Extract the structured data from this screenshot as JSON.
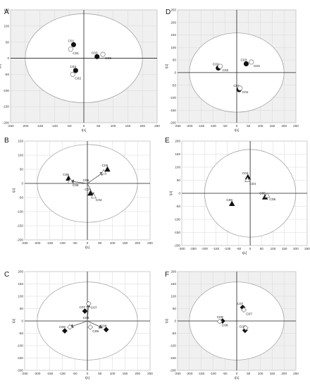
{
  "chart_data": [
    {
      "id": "A",
      "panel_letter": "A",
      "type": "scatter",
      "xlabel": "t[1]",
      "ylabel": "t[2]",
      "xlim": [
        -250,
        250
      ],
      "ylim": [
        -200,
        150
      ],
      "xticks": [
        -250,
        -200,
        -150,
        -100,
        -50,
        0,
        50,
        100,
        150,
        200,
        250
      ],
      "yticks": [
        -200,
        -150,
        -100,
        -50,
        0,
        50,
        100,
        150
      ],
      "ellipse": {
        "rx": 200,
        "ry": 138
      },
      "grid": true,
      "grid_background": "#f0f0f0",
      "points": [
        {
          "x": -35,
          "y": 42,
          "marker": "circle",
          "filled": true,
          "label": "C01"
        },
        {
          "x": -45,
          "y": 28,
          "marker": "circle",
          "filled": false,
          "label": "C01"
        },
        {
          "x": 45,
          "y": 5,
          "marker": "circle",
          "filled": true,
          "label": "C03"
        },
        {
          "x": 65,
          "y": 12,
          "marker": "circle",
          "filled": false,
          "label": "C03"
        },
        {
          "x": -28,
          "y": -38,
          "marker": "circle",
          "filled": true,
          "label": "C02"
        },
        {
          "x": -38,
          "y": -50,
          "marker": "circle",
          "filled": false,
          "label": "C02"
        }
      ],
      "arrows": []
    },
    {
      "id": "D",
      "panel_letter": "D",
      "type": "scatter",
      "xlabel": "t[1]",
      "ylabel": "t[2]",
      "xlim": [
        -250,
        250
      ],
      "ylim": [
        -200,
        250
      ],
      "xticks": [
        -250,
        -200,
        -150,
        -100,
        -50,
        0,
        50,
        100,
        150,
        200,
        250
      ],
      "yticks": [
        -200,
        -150,
        -100,
        -50,
        0,
        50,
        100,
        150,
        200,
        250
      ],
      "ellipse": {
        "rx": 200,
        "ry": 158
      },
      "grid": true,
      "grid_background": "#f0f0f0",
      "points": [
        {
          "x": -78,
          "y": 18,
          "marker": "circle",
          "filled": true,
          "label": "C02"
        },
        {
          "x": -70,
          "y": 25,
          "marker": "circle",
          "filled": false,
          "label": "C02"
        },
        {
          "x": 40,
          "y": 35,
          "marker": "circle",
          "filled": true,
          "label": "C03"
        },
        {
          "x": 62,
          "y": 42,
          "marker": "circle",
          "filled": false,
          "label": "C03"
        },
        {
          "x": 10,
          "y": -68,
          "marker": "circle",
          "filled": true,
          "label": "C01"
        },
        {
          "x": 14,
          "y": -62,
          "marker": "circle",
          "filled": false,
          "label": "C01"
        }
      ],
      "arrows": []
    },
    {
      "id": "B",
      "panel_letter": "B",
      "type": "scatter",
      "xlabel": "t[1]",
      "ylabel": "t[2]",
      "xlim": [
        -250,
        250
      ],
      "ylim": [
        -200,
        150
      ],
      "xticks": [
        -250,
        -200,
        -150,
        -100,
        -50,
        0,
        50,
        100,
        150,
        200,
        250
      ],
      "yticks": [
        -200,
        -150,
        -100,
        -50,
        0,
        50,
        100,
        150
      ],
      "ellipse": {
        "rx": 200,
        "ry": 138
      },
      "grid": true,
      "grid_background": "#ffffff",
      "points": [
        {
          "x": 80,
          "y": 50,
          "marker": "triangle",
          "filled": true,
          "label": "C05"
        },
        {
          "x": 65,
          "y": 40,
          "marker": "triangle",
          "filled": false,
          "label": ""
        },
        {
          "x": -75,
          "y": 18,
          "marker": "triangle",
          "filled": true,
          "label": "C06"
        },
        {
          "x": -68,
          "y": 8,
          "marker": "triangle",
          "filled": false,
          "label": "C06"
        },
        {
          "x": 12,
          "y": -35,
          "marker": "triangle",
          "filled": true,
          "label": "C04"
        },
        {
          "x": 25,
          "y": -45,
          "marker": "triangle",
          "filled": false,
          "label": "C04"
        }
      ],
      "center_label": "C05",
      "arrows": [
        {
          "from": [
            0,
            0
          ],
          "to": [
            65,
            40
          ]
        },
        {
          "from": [
            0,
            0
          ],
          "to": [
            -68,
            8
          ]
        },
        {
          "from": [
            0,
            0
          ],
          "to": [
            25,
            -45
          ]
        }
      ]
    },
    {
      "id": "E",
      "panel_letter": "E",
      "type": "scatter",
      "xlabel": "t[1]",
      "ylabel": "t[2]",
      "xlim": [
        -300,
        250
      ],
      "ylim": [
        -200,
        200
      ],
      "xticks": [
        -300,
        -250,
        -200,
        -150,
        -100,
        -50,
        0,
        50,
        100,
        150,
        200,
        250
      ],
      "yticks": [
        -200,
        -150,
        -100,
        -50,
        0,
        50,
        100,
        150,
        200
      ],
      "ellipse": {
        "rx": 200,
        "ry": 168
      },
      "grid": true,
      "grid_background": "#ffffff",
      "points": [
        {
          "x": -10,
          "y": 62,
          "marker": "triangle",
          "filled": true,
          "label": "C04"
        },
        {
          "x": -12,
          "y": 52,
          "marker": "triangle",
          "filled": false,
          "label": "C04"
        },
        {
          "x": -80,
          "y": -40,
          "marker": "triangle",
          "filled": true,
          "label": "C06"
        },
        {
          "x": 65,
          "y": -15,
          "marker": "triangle",
          "filled": true,
          "label": "C05"
        },
        {
          "x": 75,
          "y": -8,
          "marker": "triangle",
          "filled": false,
          "label": "C05"
        }
      ],
      "arrows": []
    },
    {
      "id": "C",
      "panel_letter": "C",
      "type": "scatter",
      "xlabel": "t[1]",
      "ylabel": "t[2]",
      "xlim": [
        -250,
        250
      ],
      "ylim": [
        -200,
        200
      ],
      "xticks": [
        -250,
        -200,
        -150,
        -100,
        -50,
        0,
        50,
        100,
        150,
        200,
        250
      ],
      "yticks": [
        -200,
        -150,
        -100,
        -50,
        0,
        50,
        100,
        150,
        200
      ],
      "ellipse": {
        "rx": 200,
        "ry": 158
      },
      "grid": true,
      "grid_background": "#ffffff",
      "points": [
        {
          "x": 5,
          "y": 70,
          "marker": "diamond",
          "filled": false,
          "label": "C07"
        },
        {
          "x": -10,
          "y": 40,
          "marker": "diamond",
          "filled": true,
          "label": "C07"
        },
        {
          "x": -90,
          "y": -40,
          "marker": "diamond",
          "filled": true,
          "label": "C09"
        },
        {
          "x": -70,
          "y": -25,
          "marker": "diamond",
          "filled": false,
          "label": ""
        },
        {
          "x": 75,
          "y": -35,
          "marker": "diamond",
          "filled": true,
          "label": "C08"
        },
        {
          "x": 12,
          "y": -25,
          "marker": "diamond",
          "filled": false,
          "label": "C09"
        }
      ],
      "center_label": "C08",
      "arrows": [
        {
          "from": [
            0,
            0
          ],
          "to": [
            5,
            70
          ]
        },
        {
          "from": [
            0,
            0
          ],
          "to": [
            -70,
            -25
          ]
        },
        {
          "from": [
            0,
            0
          ],
          "to": [
            60,
            -28
          ]
        }
      ]
    },
    {
      "id": "F",
      "panel_letter": "F",
      "type": "scatter",
      "xlabel": "t[1]",
      "ylabel": "t[2]",
      "xlim": [
        -250,
        250
      ],
      "ylim": [
        -200,
        200
      ],
      "xticks": [
        -250,
        -200,
        -150,
        -100,
        -50,
        0,
        50,
        100,
        150,
        200,
        250
      ],
      "yticks": [
        -200,
        -150,
        -100,
        -50,
        0,
        50,
        100,
        150,
        200
      ],
      "ellipse": {
        "rx": 200,
        "ry": 158
      },
      "grid": true,
      "grid_background": "#f0f0f0",
      "points": [
        {
          "x": 25,
          "y": 55,
          "marker": "diamond",
          "filled": true,
          "label": "C07"
        },
        {
          "x": 30,
          "y": 45,
          "marker": "diamond",
          "filled": false,
          "label": "C07"
        },
        {
          "x": -60,
          "y": 0,
          "marker": "diamond",
          "filled": true,
          "label": "C09"
        },
        {
          "x": -72,
          "y": -2,
          "marker": "diamond",
          "filled": false,
          "label": "C08"
        },
        {
          "x": 35,
          "y": -38,
          "marker": "diamond",
          "filled": true,
          "label": "C09"
        },
        {
          "x": 38,
          "y": -28,
          "marker": "diamond",
          "filled": false,
          "label": ""
        }
      ],
      "arrows": []
    }
  ]
}
